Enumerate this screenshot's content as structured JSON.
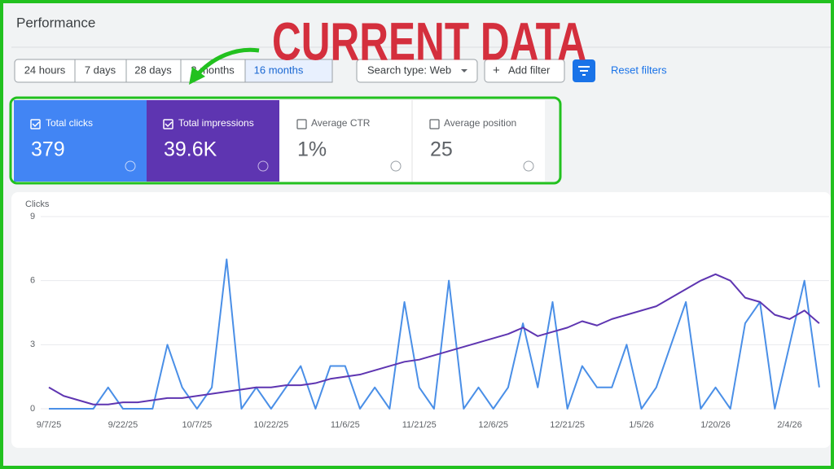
{
  "header": {
    "title": "Performance"
  },
  "filters": {
    "time_ranges": [
      "24 hours",
      "7 days",
      "28 days",
      "3 months",
      "16 months"
    ],
    "search_type": "Search type: Web",
    "add_filter": "Add filter",
    "reset": "Reset filters"
  },
  "overlay": "CURRENT DATA",
  "metrics": [
    {
      "value": "379"
    },
    {
      "value": "39.6K"
    },
    {
      "label": "Average CTR",
      "value": "1%"
    },
    {
      "label": "Average position",
      "value": "25"
    }
  ],
  "chart_data": {
    "type": "line",
    "ylabel": "Clicks",
    "x": [
      0,
      3,
      6,
      9,
      12,
      15,
      18,
      21,
      24,
      27,
      30,
      33,
      36,
      39,
      42,
      45,
      48,
      51,
      54,
      57,
      60,
      63,
      66,
      69,
      72,
      75,
      78,
      81,
      84,
      87,
      90,
      93,
      96,
      99,
      102,
      105,
      108,
      111,
      114,
      117,
      120,
      123,
      126,
      129,
      132,
      135,
      138,
      141,
      144,
      147,
      150,
      153,
      156
    ],
    "xlim": [
      0,
      158
    ],
    "xticks": [
      {
        "value": 0,
        "label": "9/7/25"
      },
      {
        "value": 15,
        "label": "9/22/25"
      },
      {
        "value": 30,
        "label": "10/7/25"
      },
      {
        "value": 45,
        "label": "10/22/25"
      },
      {
        "value": 60,
        "label": "11/6/25"
      },
      {
        "value": 75,
        "label": "11/21/25"
      },
      {
        "value": 90,
        "label": "12/6/25"
      },
      {
        "value": 105,
        "label": "12/21/25"
      },
      {
        "value": 120,
        "label": "1/5/26"
      },
      {
        "value": 135,
        "label": "1/20/26"
      },
      {
        "value": 150,
        "label": "2/4/26"
      }
    ],
    "ylim": [
      0,
      9
    ],
    "yticks": [
      0,
      3,
      6,
      9
    ],
    "grid": true,
    "series": [
      {
        "name": "Total clicks",
        "color": "#4a8fe7",
        "values": [
          0,
          0,
          0,
          0,
          1,
          0,
          0,
          0,
          3,
          1,
          0,
          1,
          7,
          0,
          1,
          0,
          1,
          2,
          0,
          2,
          2,
          0,
          1,
          0,
          5,
          1,
          0,
          6,
          0,
          1,
          0,
          1,
          4,
          1,
          5,
          0,
          2,
          1,
          1,
          3,
          0,
          1,
          3,
          5,
          0,
          1,
          0,
          4,
          5,
          0,
          3,
          6,
          1
        ]
      },
      {
        "name": "Total impressions",
        "color": "#5e35b1",
        "values": [
          1,
          0.6,
          0.4,
          0.2,
          0.2,
          0.3,
          0.3,
          0.4,
          0.5,
          0.5,
          0.6,
          0.7,
          0.8,
          0.9,
          1,
          1,
          1.1,
          1.1,
          1.2,
          1.4,
          1.5,
          1.6,
          1.8,
          2,
          2.2,
          2.3,
          2.5,
          2.7,
          2.9,
          3.1,
          3.3,
          3.5,
          3.8,
          3.4,
          3.6,
          3.8,
          4.1,
          3.9,
          4.2,
          4.4,
          4.6,
          4.8,
          5.2,
          5.6,
          6,
          6.3,
          6,
          5.2,
          5,
          4.4,
          4.2,
          4.6,
          4
        ]
      }
    ]
  }
}
